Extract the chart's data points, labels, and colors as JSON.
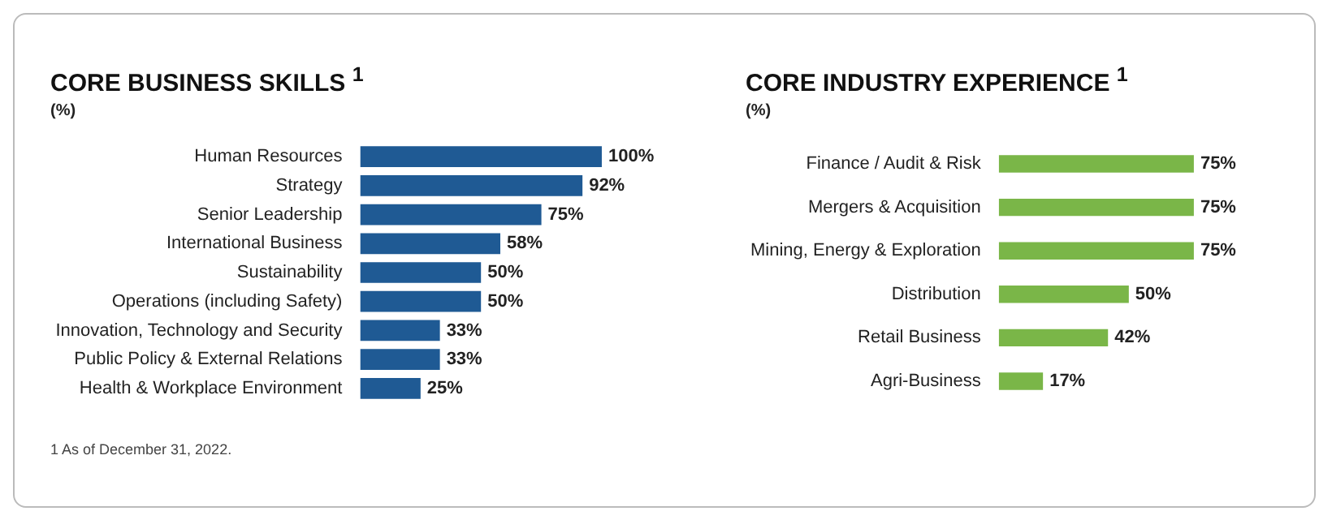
{
  "chart_data": [
    {
      "type": "bar",
      "orientation": "horizontal",
      "title": "CORE BUSINESS SKILLS $^{1}$",
      "subtitle": "(%)",
      "categories": [
        "Human Resources",
        "Strategy",
        "Senior Leadership",
        "International Business",
        "Sustainability",
        "Operations (including Safety)",
        "Innovation, Technology and Security",
        "Public Policy & External Relations",
        "Health & Workplace Environment"
      ],
      "values": [
        100,
        92,
        75,
        58,
        50,
        50,
        33,
        33,
        25
      ],
      "value_labels": [
        "100%",
        "92%",
        "75%",
        "58%",
        "50%",
        "50%",
        "33%",
        "33%",
        "25%"
      ],
      "color": "#1f5a94",
      "legend": false,
      "annotations": [
        "1 As of December 31, 2022."
      ]
    },
    {
      "type": "bar",
      "orientation": "horizontal",
      "title": "CORE INDUSTRY EXPERIENCE $^{1}$",
      "subtitle": "(%)",
      "categories": [
        "Finance / Audit & Risk",
        "Mergers & Acquisition",
        "Mining, Energy & Exploration",
        "Distribution",
        "Retail Business",
        "Agri-Business"
      ],
      "values": [
        75,
        75,
        75,
        50,
        42,
        17
      ],
      "value_labels": [
        "75%",
        "75%",
        "75%",
        "50%",
        "42%",
        "17%"
      ],
      "color": "#7ab648",
      "legend": false
    }
  ]
}
